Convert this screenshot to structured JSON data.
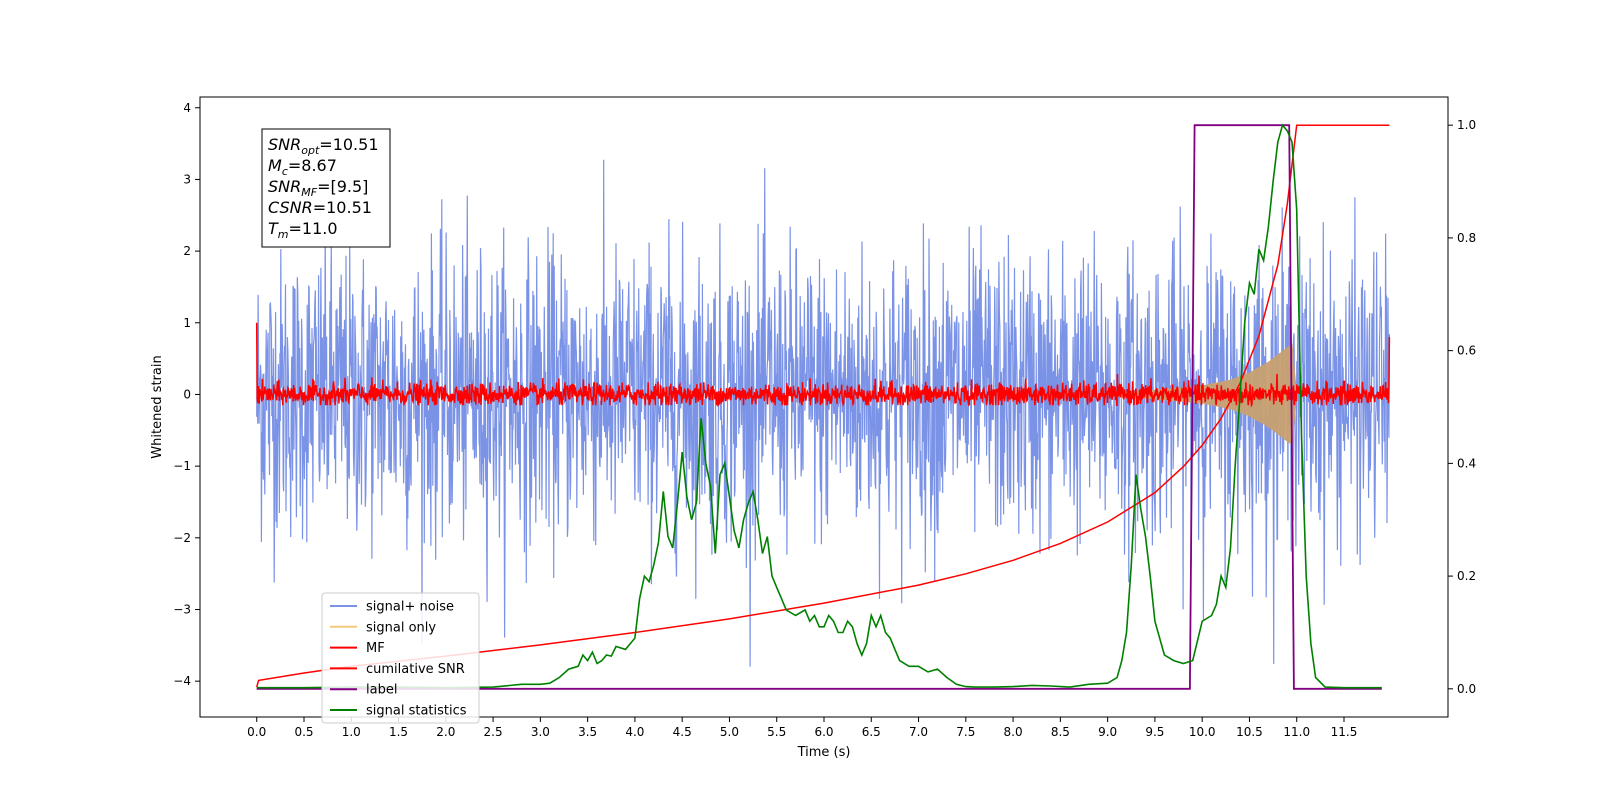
{
  "chart_data": {
    "type": "line",
    "xlabel": "Time (s)",
    "ylabel": "Whitened strain",
    "xlim": [
      -0.6,
      12.6
    ],
    "ylim_left": [
      -4.5,
      4.15
    ],
    "ylim_right": [
      -0.05,
      1.05
    ],
    "x_ticks": [
      "0.0",
      "0.5",
      "1.0",
      "1.5",
      "2.0",
      "2.5",
      "3.0",
      "3.5",
      "4.0",
      "4.5",
      "5.0",
      "5.5",
      "6.0",
      "6.5",
      "7.0",
      "7.5",
      "8.0",
      "8.5",
      "9.0",
      "9.5",
      "10.0",
      "10.5",
      "11.0",
      "11.5"
    ],
    "y_ticks_left": [
      "4",
      "3",
      "2",
      "1",
      "0",
      "−1",
      "−2",
      "−3",
      "−4"
    ],
    "y_ticks_right": [
      "1.0",
      "0.8",
      "0.6",
      "0.4",
      "0.2",
      "0.0"
    ],
    "annotation": {
      "lines": [
        {
          "sym": "SNR",
          "sub": "opt",
          "eq": "=10.51"
        },
        {
          "sym": "M",
          "sub": "c",
          "eq": "=8.67"
        },
        {
          "sym": "SNR",
          "sub": "MF",
          "eq": "=[9.5]"
        },
        {
          "sym": "CSNR",
          "sub": "",
          "eq": "=10.51"
        },
        {
          "sym": "T",
          "sub": "m",
          "eq": "=11.0"
        }
      ]
    },
    "legend": {
      "placement": "lower-left",
      "entries": [
        {
          "label": "signal+ noise",
          "color": "#7b93e6"
        },
        {
          "label": "signal only",
          "color": "#f5c97a"
        },
        {
          "label": "MF",
          "color": "#ff0000"
        },
        {
          "label": "cumilative SNR",
          "color": "#ff0000"
        },
        {
          "label": "label",
          "color": "#800080"
        },
        {
          "label": "signal statistics",
          "color": "#008000"
        }
      ]
    },
    "series": [
      {
        "name": "signal+ noise",
        "axis": "left",
        "color": "#7b93e6",
        "kind": "noise",
        "x_range": [
          0,
          11.98
        ],
        "sigma": 1.0,
        "spike_max": 3.8,
        "spike_min": -3.8
      },
      {
        "name": "signal only",
        "axis": "left",
        "color": "#c8a070",
        "kind": "chirp_envelope",
        "x": [
          9.0,
          9.5,
          10.0,
          10.3,
          10.5,
          10.7,
          10.85,
          10.95,
          11.0
        ],
        "upper": [
          0.02,
          0.06,
          0.12,
          0.2,
          0.3,
          0.45,
          0.6,
          0.7,
          0.0
        ],
        "lower": [
          -0.02,
          -0.06,
          -0.12,
          -0.2,
          -0.3,
          -0.45,
          -0.6,
          -0.7,
          0.0
        ]
      },
      {
        "name": "MF",
        "axis": "left",
        "color": "#ff0000",
        "kind": "noise",
        "x_range": [
          0,
          11.98
        ],
        "sigma": 0.08,
        "spike_max": 0.42,
        "spike_min": -0.15,
        "edge_start": 1.0,
        "edge_end": 0.8
      },
      {
        "name": "cumilative SNR",
        "axis": "right",
        "color": "#ff0000",
        "x": [
          0.0,
          0.02,
          0.5,
          1.0,
          2.0,
          3.0,
          4.0,
          5.0,
          6.0,
          7.0,
          7.5,
          8.0,
          8.5,
          9.0,
          9.5,
          9.8,
          10.0,
          10.2,
          10.4,
          10.6,
          10.8,
          10.9,
          11.0,
          11.98
        ],
        "y": [
          0.003,
          0.015,
          0.028,
          0.04,
          0.058,
          0.078,
          0.1,
          0.124,
          0.152,
          0.184,
          0.204,
          0.228,
          0.258,
          0.296,
          0.348,
          0.394,
          0.432,
          0.48,
          0.542,
          0.626,
          0.752,
          0.86,
          1.0,
          1.0
        ]
      },
      {
        "name": "label",
        "axis": "right",
        "color": "#800080",
        "x": [
          0.0,
          9.87,
          9.92,
          10.92,
          10.97,
          11.9
        ],
        "y": [
          0.0,
          0.0,
          1.0,
          1.0,
          0.0,
          0.0
        ]
      },
      {
        "name": "signal statistics",
        "axis": "right",
        "color": "#008000",
        "x": [
          0.0,
          0.5,
          1.0,
          1.5,
          2.0,
          2.5,
          2.8,
          3.0,
          3.1,
          3.2,
          3.3,
          3.4,
          3.45,
          3.5,
          3.55,
          3.6,
          3.65,
          3.7,
          3.75,
          3.8,
          3.9,
          4.0,
          4.05,
          4.1,
          4.15,
          4.2,
          4.25,
          4.3,
          4.35,
          4.4,
          4.45,
          4.5,
          4.55,
          4.6,
          4.65,
          4.7,
          4.75,
          4.8,
          4.85,
          4.9,
          4.95,
          5.0,
          5.05,
          5.1,
          5.15,
          5.2,
          5.25,
          5.3,
          5.35,
          5.4,
          5.45,
          5.5,
          5.55,
          5.6,
          5.7,
          5.8,
          5.85,
          5.9,
          5.95,
          6.0,
          6.05,
          6.1,
          6.15,
          6.2,
          6.25,
          6.3,
          6.35,
          6.4,
          6.45,
          6.5,
          6.55,
          6.6,
          6.65,
          6.7,
          6.75,
          6.8,
          6.9,
          7.0,
          7.1,
          7.2,
          7.3,
          7.4,
          7.5,
          7.6,
          7.8,
          8.0,
          8.2,
          8.4,
          8.6,
          8.8,
          9.0,
          9.1,
          9.15,
          9.2,
          9.25,
          9.3,
          9.35,
          9.4,
          9.45,
          9.5,
          9.6,
          9.7,
          9.8,
          9.9,
          10.0,
          10.1,
          10.15,
          10.2,
          10.25,
          10.3,
          10.35,
          10.4,
          10.45,
          10.5,
          10.55,
          10.6,
          10.65,
          10.7,
          10.75,
          10.8,
          10.85,
          10.9,
          10.95,
          11.0,
          11.05,
          11.1,
          11.15,
          11.2,
          11.3,
          11.5,
          11.9
        ],
        "y": [
          0.002,
          0.002,
          0.003,
          0.003,
          0.002,
          0.003,
          0.008,
          0.008,
          0.01,
          0.02,
          0.035,
          0.04,
          0.06,
          0.05,
          0.065,
          0.045,
          0.05,
          0.06,
          0.058,
          0.075,
          0.07,
          0.09,
          0.16,
          0.2,
          0.19,
          0.22,
          0.26,
          0.35,
          0.27,
          0.25,
          0.33,
          0.42,
          0.34,
          0.3,
          0.33,
          0.48,
          0.4,
          0.36,
          0.24,
          0.38,
          0.4,
          0.34,
          0.28,
          0.25,
          0.3,
          0.33,
          0.35,
          0.3,
          0.24,
          0.27,
          0.2,
          0.18,
          0.16,
          0.14,
          0.13,
          0.14,
          0.12,
          0.13,
          0.11,
          0.11,
          0.13,
          0.12,
          0.1,
          0.1,
          0.12,
          0.11,
          0.08,
          0.06,
          0.08,
          0.13,
          0.11,
          0.13,
          0.1,
          0.09,
          0.07,
          0.05,
          0.04,
          0.04,
          0.03,
          0.035,
          0.02,
          0.008,
          0.004,
          0.003,
          0.003,
          0.004,
          0.006,
          0.005,
          0.003,
          0.008,
          0.01,
          0.02,
          0.05,
          0.1,
          0.22,
          0.38,
          0.32,
          0.27,
          0.2,
          0.12,
          0.06,
          0.05,
          0.045,
          0.05,
          0.12,
          0.13,
          0.15,
          0.2,
          0.18,
          0.25,
          0.4,
          0.52,
          0.65,
          0.72,
          0.7,
          0.78,
          0.76,
          0.82,
          0.9,
          0.97,
          1.0,
          0.99,
          0.97,
          0.85,
          0.45,
          0.2,
          0.08,
          0.02,
          0.003,
          0.002,
          0.002
        ]
      }
    ]
  }
}
